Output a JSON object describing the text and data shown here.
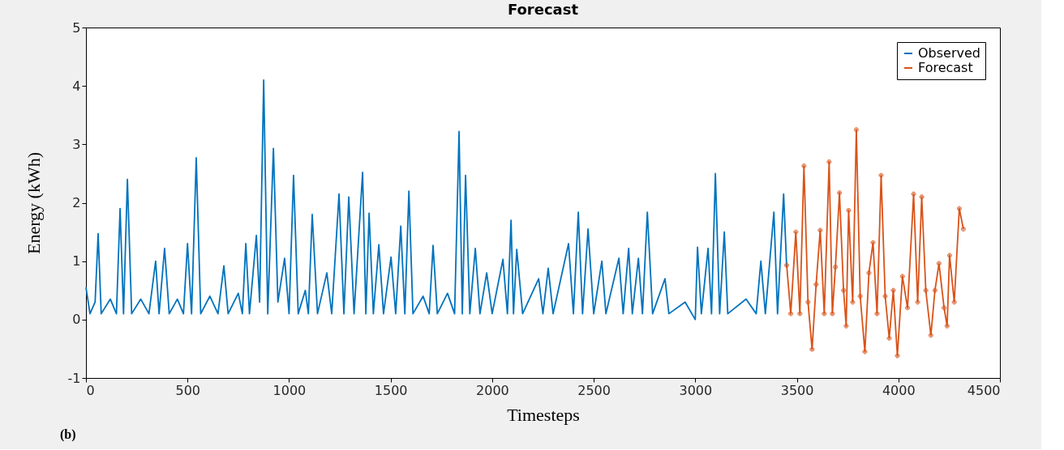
{
  "chart_data": {
    "type": "line",
    "title": "Forecast",
    "xlabel": "Timesteps",
    "ylabel": "Energy (kWh)",
    "annotations": [
      "(b)"
    ],
    "xlim": [
      0,
      4500
    ],
    "xticks": [
      0,
      500,
      1000,
      1500,
      2000,
      2500,
      3000,
      3500,
      4000,
      4500
    ],
    "ylim": [
      -1,
      5
    ],
    "yticks": [
      -1,
      0,
      1,
      2,
      3,
      4,
      5
    ],
    "grid": false,
    "legend": "top right",
    "series": [
      {
        "name": "Observed",
        "color": "#0072bd",
        "marker": "none",
        "x": [
          0,
          20,
          45,
          60,
          75,
          120,
          150,
          168,
          185,
          204,
          225,
          270,
          310,
          343,
          360,
          387,
          410,
          450,
          480,
          500,
          520,
          543,
          565,
          610,
          650,
          679,
          700,
          750,
          770,
          787,
          805,
          839,
          855,
          875,
          895,
          923,
          945,
          978,
          1000,
          1022,
          1045,
          1080,
          1095,
          1114,
          1140,
          1186,
          1210,
          1246,
          1270,
          1294,
          1320,
          1362,
          1378,
          1394,
          1415,
          1442,
          1465,
          1502,
          1525,
          1550,
          1570,
          1590,
          1610,
          1660,
          1690,
          1709,
          1730,
          1780,
          1815,
          1837,
          1853,
          1869,
          1890,
          1917,
          1940,
          1973,
          2000,
          2053,
          2075,
          2093,
          2105,
          2121,
          2150,
          2229,
          2250,
          2276,
          2300,
          2376,
          2400,
          2424,
          2445,
          2472,
          2500,
          2540,
          2560,
          2624,
          2645,
          2672,
          2690,
          2720,
          2740,
          2764,
          2790,
          2851,
          2870,
          2950,
          3000,
          3011,
          3030,
          3063,
          3080,
          3099,
          3120,
          3143,
          3160,
          3250,
          3300,
          3323,
          3345,
          3387,
          3405,
          3435,
          3450
        ],
        "values": [
          0.55,
          0.1,
          0.3,
          1.47,
          0.1,
          0.35,
          0.1,
          1.9,
          0.1,
          2.4,
          0.1,
          0.35,
          0.1,
          1.0,
          0.1,
          1.22,
          0.1,
          0.35,
          0.1,
          1.3,
          0.1,
          2.77,
          0.1,
          0.4,
          0.1,
          0.92,
          0.1,
          0.45,
          0.1,
          1.3,
          0.1,
          1.44,
          0.3,
          4.1,
          0.1,
          2.93,
          0.3,
          1.05,
          0.1,
          2.47,
          0.1,
          0.5,
          0.1,
          1.8,
          0.1,
          0.8,
          0.1,
          2.15,
          0.1,
          2.1,
          0.1,
          2.52,
          0.1,
          1.82,
          0.1,
          1.28,
          0.1,
          1.07,
          0.1,
          1.6,
          0.1,
          2.2,
          0.1,
          0.4,
          0.1,
          1.27,
          0.1,
          0.45,
          0.1,
          3.22,
          0.1,
          2.47,
          0.1,
          1.22,
          0.1,
          0.8,
          0.1,
          1.03,
          0.1,
          1.7,
          0.1,
          1.2,
          0.1,
          0.7,
          0.1,
          0.88,
          0.1,
          1.3,
          0.1,
          1.84,
          0.1,
          1.55,
          0.1,
          1.0,
          0.1,
          1.05,
          0.1,
          1.22,
          0.1,
          1.05,
          0.1,
          1.84,
          0.1,
          0.7,
          0.1,
          0.3,
          0.0,
          1.24,
          0.1,
          1.22,
          0.1,
          2.5,
          0.1,
          1.5,
          0.1,
          0.35,
          0.1,
          1.0,
          0.1,
          1.84,
          0.1,
          2.15,
          0.9
        ]
      },
      {
        "name": "Forecast",
        "color": "#d95319",
        "marker": "cross",
        "x": [
          3450,
          3470,
          3495,
          3515,
          3535,
          3555,
          3575,
          3595,
          3615,
          3635,
          3659,
          3675,
          3690,
          3710,
          3730,
          3743,
          3755,
          3775,
          3793,
          3812,
          3835,
          3855,
          3875,
          3895,
          3915,
          3935,
          3955,
          3975,
          3995,
          4020,
          4045,
          4075,
          4095,
          4115,
          4135,
          4160,
          4180,
          4200,
          4225,
          4240,
          4252,
          4275,
          4300,
          4320
        ],
        "values": [
          0.93,
          0.1,
          1.5,
          0.1,
          2.63,
          0.3,
          -0.51,
          0.6,
          1.53,
          0.1,
          2.7,
          0.1,
          0.9,
          2.17,
          0.5,
          -0.11,
          1.87,
          0.3,
          3.25,
          0.4,
          -0.55,
          0.8,
          1.32,
          0.1,
          2.47,
          0.4,
          -0.32,
          0.5,
          -0.62,
          0.74,
          0.2,
          2.15,
          0.3,
          2.1,
          0.5,
          -0.27,
          0.5,
          0.96,
          0.2,
          -0.11,
          1.1,
          0.3,
          1.9,
          1.55
        ]
      }
    ]
  }
}
